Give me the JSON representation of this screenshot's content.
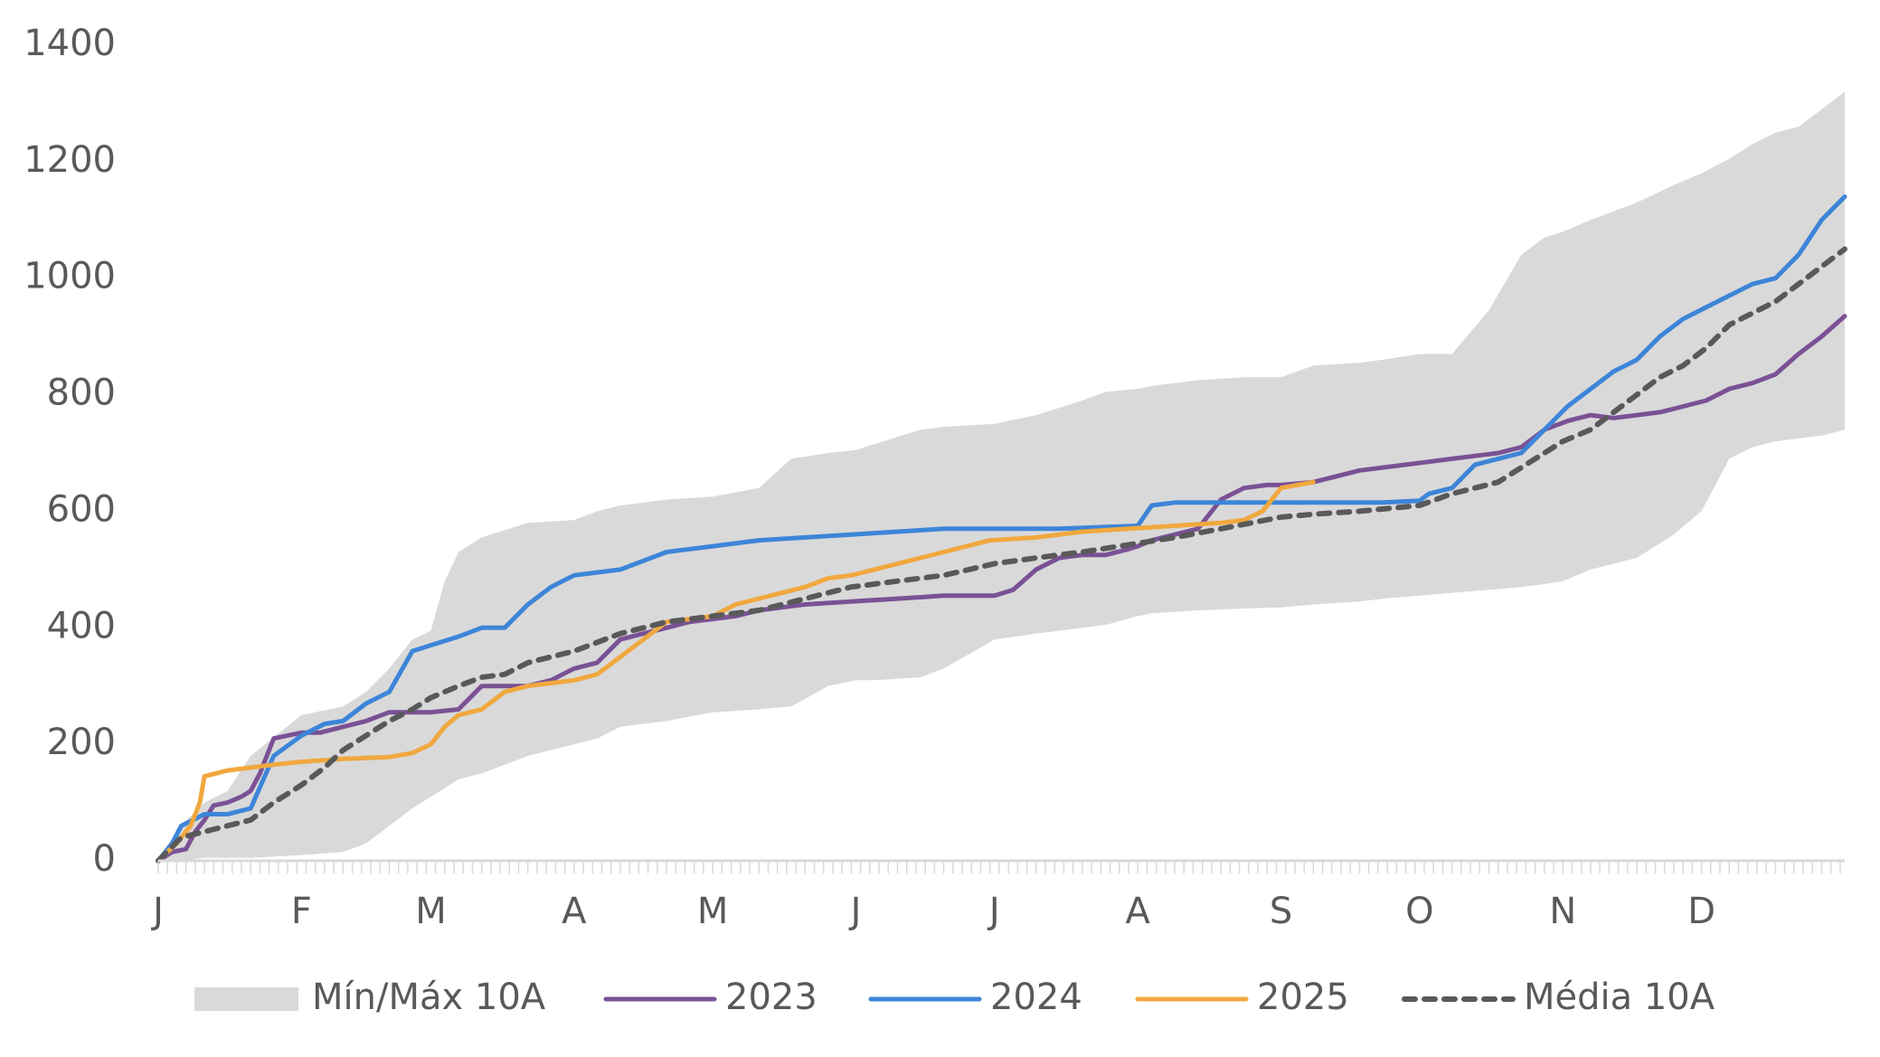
{
  "chart_data": {
    "type": "line",
    "ylim": [
      0,
      1400
    ],
    "yticks": [
      0,
      200,
      400,
      600,
      800,
      1000,
      1200,
      1400
    ],
    "xlim": [
      0,
      365
    ],
    "month_labels": [
      "J",
      "F",
      "M",
      "A",
      "M",
      "J",
      "J",
      "A",
      "S",
      "O",
      "N",
      "D"
    ],
    "month_days": [
      0,
      31,
      59,
      90,
      120,
      151,
      181,
      212,
      243,
      273,
      304,
      334
    ],
    "grid": false,
    "legend_position": "bottom",
    "band": {
      "name": "Mín/Máx 10A",
      "color": "#d9d9d9",
      "x": [
        0,
        5,
        10,
        15,
        20,
        31,
        40,
        45,
        50,
        55,
        59,
        62,
        65,
        70,
        80,
        90,
        95,
        100,
        110,
        120,
        130,
        137,
        145,
        151,
        155,
        165,
        170,
        181,
        190,
        200,
        205,
        212,
        215,
        225,
        235,
        243,
        250,
        260,
        265,
        273,
        280,
        288,
        295,
        300,
        304,
        310,
        320,
        328,
        334,
        340,
        345,
        350,
        355,
        360,
        365
      ],
      "min": [
        0,
        0,
        5,
        5,
        5,
        10,
        15,
        30,
        60,
        90,
        110,
        125,
        140,
        150,
        180,
        200,
        210,
        230,
        240,
        255,
        260,
        265,
        300,
        310,
        310,
        315,
        330,
        380,
        390,
        400,
        405,
        420,
        425,
        430,
        433,
        435,
        440,
        445,
        450,
        455,
        460,
        465,
        470,
        475,
        480,
        500,
        520,
        560,
        600,
        690,
        710,
        720,
        725,
        730,
        740
      ],
      "max": [
        0,
        60,
        100,
        120,
        180,
        250,
        265,
        290,
        330,
        380,
        395,
        480,
        530,
        555,
        580,
        585,
        600,
        610,
        620,
        625,
        640,
        690,
        700,
        705,
        715,
        740,
        745,
        750,
        765,
        790,
        805,
        810,
        815,
        825,
        830,
        830,
        850,
        855,
        860,
        870,
        870,
        945,
        1040,
        1070,
        1080,
        1100,
        1130,
        1160,
        1180,
        1205,
        1230,
        1250,
        1260,
        1290,
        1320
      ]
    },
    "series": [
      {
        "name": "2023",
        "color": "#7a5195",
        "dashed": false,
        "x": [
          0,
          3,
          6,
          8,
          10,
          12,
          15,
          18,
          20,
          22,
          25,
          31,
          35,
          40,
          45,
          50,
          55,
          59,
          65,
          70,
          75,
          80,
          85,
          90,
          95,
          100,
          105,
          110,
          115,
          120,
          125,
          130,
          140,
          150,
          160,
          170,
          175,
          181,
          185,
          190,
          195,
          200,
          205,
          210,
          212,
          215,
          220,
          225,
          230,
          235,
          240,
          243,
          250,
          255,
          260,
          265,
          270,
          275,
          280,
          285,
          290,
          295,
          300,
          305,
          310,
          315,
          320,
          325,
          330,
          335,
          340,
          345,
          350,
          355,
          360,
          365
        ],
        "y": [
          0,
          15,
          20,
          50,
          70,
          95,
          100,
          110,
          120,
          150,
          210,
          220,
          220,
          230,
          240,
          255,
          255,
          255,
          260,
          300,
          300,
          300,
          310,
          330,
          340,
          380,
          390,
          400,
          410,
          415,
          420,
          430,
          440,
          445,
          450,
          455,
          455,
          455,
          465,
          500,
          520,
          525,
          525,
          535,
          540,
          550,
          560,
          570,
          620,
          640,
          645,
          645,
          650,
          660,
          670,
          675,
          680,
          685,
          690,
          695,
          700,
          710,
          740,
          755,
          765,
          760,
          765,
          770,
          780,
          790,
          810,
          820,
          835,
          870,
          900,
          935
        ]
      },
      {
        "name": "2024",
        "color": "#3d85d8",
        "dashed": false,
        "x": [
          0,
          3,
          5,
          10,
          15,
          20,
          25,
          31,
          36,
          40,
          45,
          50,
          55,
          59,
          65,
          70,
          75,
          80,
          85,
          90,
          100,
          110,
          120,
          130,
          140,
          150,
          160,
          170,
          181,
          195,
          212,
          215,
          220,
          230,
          240,
          243,
          255,
          265,
          273,
          275,
          280,
          285,
          290,
          295,
          300,
          305,
          310,
          315,
          320,
          325,
          330,
          335,
          340,
          345,
          350,
          355,
          360,
          365
        ],
        "y": [
          0,
          30,
          60,
          80,
          80,
          90,
          180,
          215,
          235,
          240,
          270,
          290,
          360,
          370,
          385,
          400,
          400,
          440,
          470,
          490,
          500,
          530,
          540,
          550,
          555,
          560,
          565,
          570,
          570,
          570,
          575,
          610,
          615,
          615,
          615,
          615,
          615,
          615,
          618,
          630,
          640,
          680,
          690,
          700,
          740,
          780,
          810,
          840,
          860,
          900,
          930,
          950,
          970,
          990,
          1000,
          1040,
          1100,
          1140
        ]
      },
      {
        "name": "2025",
        "color": "#f0a83e",
        "dashed": false,
        "x": [
          0,
          4,
          7,
          9,
          10,
          15,
          20,
          25,
          31,
          40,
          50,
          55,
          59,
          62,
          65,
          70,
          75,
          80,
          85,
          90,
          95,
          100,
          105,
          110,
          120,
          125,
          130,
          140,
          145,
          150,
          155,
          165,
          180,
          190,
          200,
          210,
          220,
          230,
          235,
          239,
          243,
          250
        ],
        "y": [
          0,
          30,
          60,
          100,
          145,
          155,
          160,
          165,
          170,
          175,
          178,
          185,
          200,
          230,
          250,
          260,
          290,
          300,
          305,
          310,
          320,
          350,
          380,
          410,
          420,
          440,
          450,
          470,
          485,
          490,
          500,
          520,
          550,
          555,
          565,
          570,
          575,
          580,
          585,
          600,
          640,
          650
        ]
      },
      {
        "name": "Média 10A",
        "color": "#595959",
        "dashed": true,
        "x": [
          0,
          5,
          10,
          15,
          20,
          25,
          31,
          36,
          40,
          45,
          50,
          55,
          59,
          65,
          70,
          75,
          80,
          85,
          90,
          95,
          100,
          105,
          110,
          120,
          130,
          140,
          150,
          160,
          170,
          181,
          190,
          200,
          212,
          220,
          230,
          243,
          250,
          260,
          273,
          280,
          290,
          300,
          304,
          310,
          315,
          320,
          325,
          330,
          335,
          340,
          345,
          350,
          355,
          360,
          365
        ],
        "y": [
          0,
          40,
          50,
          60,
          70,
          100,
          130,
          160,
          190,
          215,
          240,
          260,
          280,
          300,
          315,
          320,
          340,
          350,
          360,
          375,
          390,
          400,
          410,
          420,
          430,
          450,
          470,
          480,
          490,
          510,
          520,
          530,
          545,
          555,
          570,
          590,
          595,
          600,
          610,
          630,
          650,
          700,
          720,
          740,
          770,
          800,
          830,
          850,
          880,
          920,
          940,
          960,
          990,
          1020,
          1050
        ]
      }
    ]
  }
}
